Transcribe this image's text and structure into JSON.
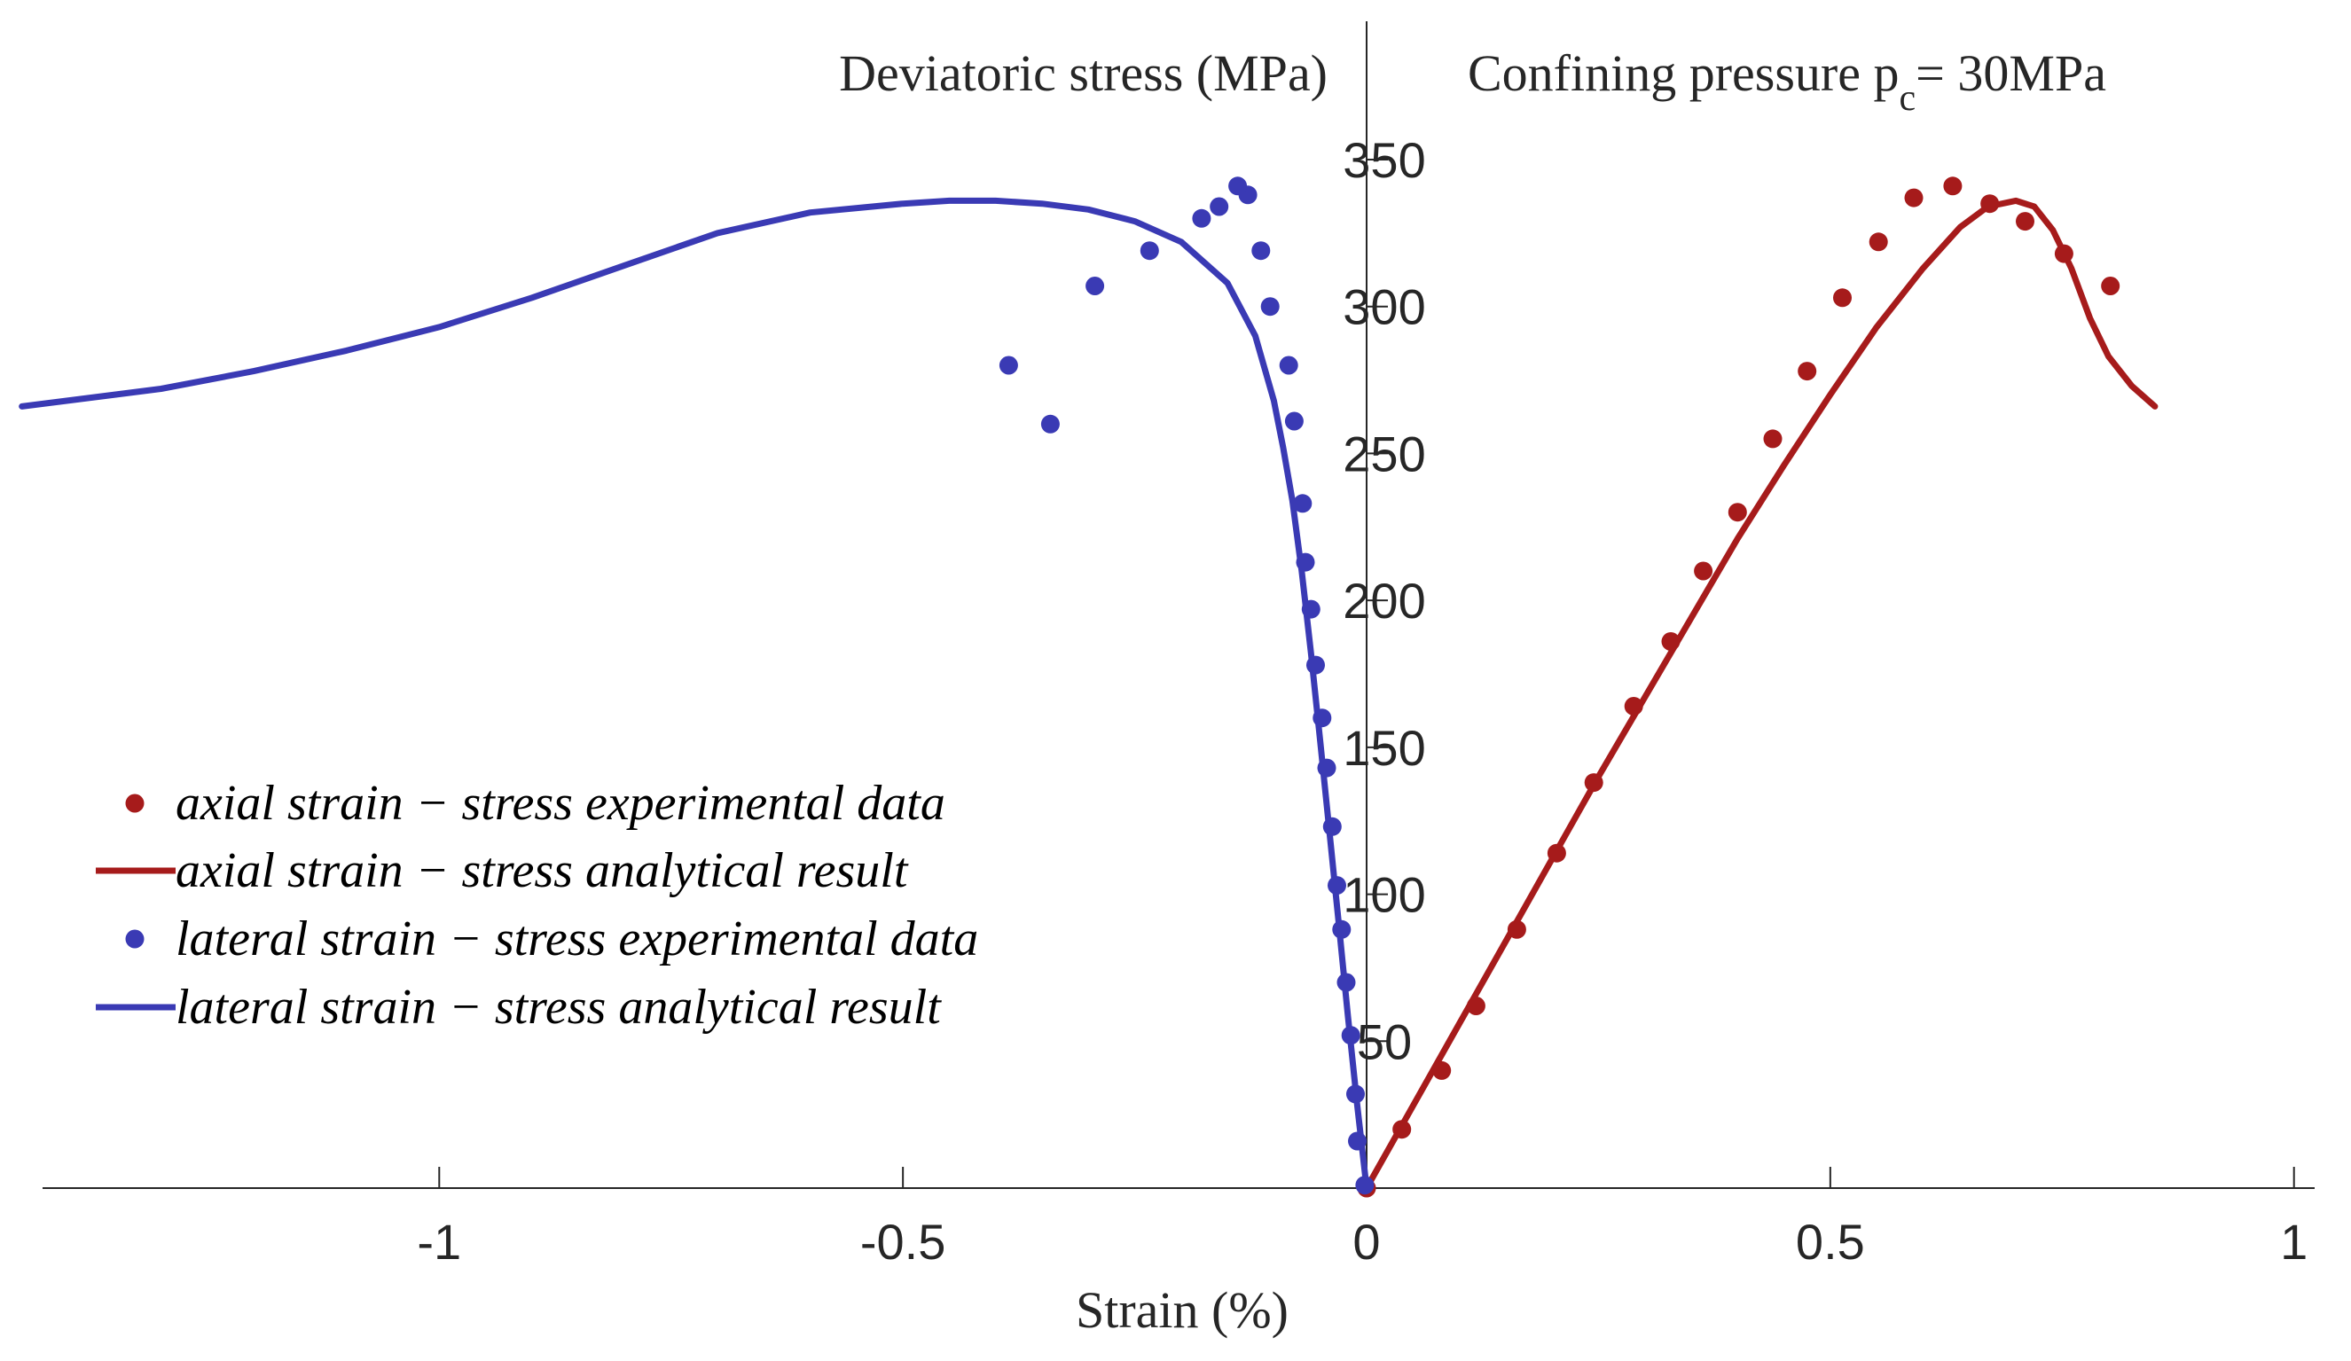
{
  "chart_data": {
    "type": "scatter",
    "xlabel": "Strain (%)",
    "ylabel": "Deviatoric stress (MPa)",
    "annotation": {
      "prefix": "Confining pressure p",
      "subscript": "c",
      "suffix": "= 30MPa"
    },
    "xlim": [
      -1.45,
      1.0
    ],
    "ylim": [
      0,
      400
    ],
    "x_ticks": [
      -1,
      -0.5,
      0,
      0.5,
      1
    ],
    "x_tick_labels": [
      "-1",
      "-0.5",
      "0",
      "0.5",
      "1"
    ],
    "y_ticks": [
      50,
      100,
      150,
      200,
      250,
      300,
      350
    ],
    "y_tick_labels": [
      "50",
      "100",
      "150",
      "200",
      "250",
      "300",
      "350"
    ],
    "legend_position": "left",
    "series": [
      {
        "name": "axial strain − stress experimental data",
        "kind": "points",
        "color": "#a61b1b",
        "x": [
          0.0,
          0.038,
          0.081,
          0.118,
          0.162,
          0.205,
          0.245,
          0.288,
          0.328,
          0.363,
          0.4,
          0.438,
          0.475,
          0.513,
          0.552,
          0.59,
          0.632,
          0.672,
          0.71,
          0.752,
          0.802
        ],
        "y": [
          0,
          20,
          40,
          62,
          88,
          114,
          138,
          164,
          186,
          210,
          230,
          255,
          278,
          303,
          322,
          337,
          341,
          335,
          329,
          318,
          307
        ]
      },
      {
        "name": "axial strain − stress analytical result",
        "kind": "line",
        "color": "#a61b1b",
        "x": [
          0.0,
          0.05,
          0.1,
          0.15,
          0.2,
          0.25,
          0.3,
          0.35,
          0.4,
          0.45,
          0.5,
          0.55,
          0.6,
          0.64,
          0.67,
          0.7,
          0.72,
          0.74,
          0.76,
          0.78,
          0.8,
          0.825,
          0.85
        ],
        "y": [
          0,
          28,
          56,
          84,
          112,
          140,
          167,
          194,
          221,
          246,
          270,
          293,
          313,
          327,
          334,
          336,
          334,
          326,
          313,
          296,
          283,
          273,
          266
        ]
      },
      {
        "name": "lateral strain − stress experimental data",
        "kind": "points",
        "color": "#3a3ab4",
        "x": [
          -0.002,
          -0.01,
          -0.012,
          -0.017,
          -0.022,
          -0.027,
          -0.032,
          -0.037,
          -0.043,
          -0.048,
          -0.055,
          -0.06,
          -0.066,
          -0.069,
          -0.078,
          -0.084,
          -0.104,
          -0.114,
          -0.128,
          -0.139,
          -0.159,
          -0.178,
          -0.234,
          -0.293,
          -0.341,
          -0.386
        ],
        "y": [
          1,
          16,
          32,
          52,
          70,
          88,
          103,
          123,
          143,
          160,
          178,
          197,
          213,
          233,
          261,
          280,
          300,
          319,
          338,
          341,
          334,
          330,
          319,
          307,
          260,
          280
        ]
      },
      {
        "name": "lateral strain − stress analytical result",
        "kind": "line",
        "color": "#3a3ab4",
        "x": [
          0.0,
          -0.01,
          -0.02,
          -0.03,
          -0.04,
          -0.05,
          -0.06,
          -0.07,
          -0.08,
          -0.09,
          -0.1,
          -0.12,
          -0.15,
          -0.2,
          -0.25,
          -0.3,
          -0.35,
          -0.4,
          -0.45,
          -0.5,
          -0.6,
          -0.7,
          -0.8,
          -0.9,
          -1.0,
          -1.1,
          -1.2,
          -1.3,
          -1.45
        ],
        "y": [
          0,
          28,
          58,
          90,
          121,
          152,
          182,
          210,
          234,
          252,
          268,
          290,
          308,
          322,
          329,
          333,
          335,
          336,
          336,
          335,
          332,
          325,
          314,
          303,
          293,
          285,
          278,
          272,
          266
        ]
      }
    ]
  }
}
